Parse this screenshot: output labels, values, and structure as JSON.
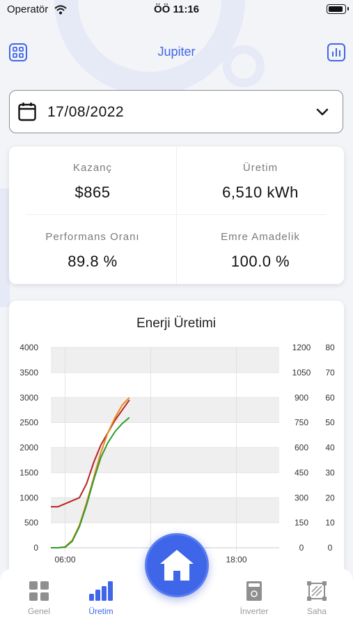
{
  "status_bar": {
    "carrier": "Operatör",
    "time": "ÖÖ 11:16"
  },
  "header": {
    "title": "Jupiter",
    "left_icon": "grid-icon",
    "right_icon": "bar-chart-icon"
  },
  "date_picker": {
    "value": "17/08/2022",
    "icon": "calendar-icon",
    "dropdown_icon": "chevron-down-icon"
  },
  "stats": {
    "earnings": {
      "label": "Kazanç",
      "value": "$865"
    },
    "production": {
      "label": "Üretim",
      "value": "6,510 kWh"
    },
    "performance": {
      "label": "Performans Oranı",
      "value": "89.8 %"
    },
    "availability": {
      "label": "Emre Amadelik",
      "value": "100.0 %"
    }
  },
  "chart_data": {
    "type": "line",
    "title": "Enerji Üretimi",
    "xlabel": "",
    "x_tick_labels": [
      "06:00",
      "18:00"
    ],
    "left_axis": {
      "ylim": [
        0,
        4000
      ],
      "ticks": [
        "0",
        "500",
        "1000",
        "1500",
        "2000",
        "2500",
        "3000",
        "3500",
        "4000"
      ]
    },
    "right_axis_1": {
      "ylim": [
        0,
        1200
      ],
      "ticks": [
        "0",
        "150",
        "300",
        "450",
        "600",
        "750",
        "900",
        "1050",
        "1200"
      ]
    },
    "right_axis_2": {
      "ylim": [
        0,
        80
      ],
      "ticks": [
        "0",
        "10",
        "20",
        "30",
        "40",
        "50",
        "60",
        "70",
        "80"
      ]
    },
    "x_range_hours": [
      5,
      21
    ],
    "series": [
      {
        "color": "#b52222",
        "x": [
          5,
          5.5,
          6,
          6.5,
          7,
          7.5,
          8,
          8.5,
          9,
          9.5,
          10,
          10.5
        ],
        "y": [
          820,
          820,
          880,
          940,
          1000,
          1280,
          1700,
          2050,
          2300,
          2550,
          2750,
          2950
        ]
      },
      {
        "color": "#e68a1a",
        "x": [
          5,
          5.5,
          6,
          6.5,
          7,
          7.5,
          8,
          8.5,
          9,
          9.5,
          10,
          10.5
        ],
        "y": [
          0,
          0,
          20,
          150,
          450,
          900,
          1400,
          1900,
          2300,
          2600,
          2850,
          3000
        ]
      },
      {
        "color": "#2e9a2e",
        "x": [
          5,
          5.5,
          6,
          6.5,
          7,
          7.5,
          8,
          8.5,
          9,
          9.5,
          10,
          10.5
        ],
        "y": [
          0,
          0,
          10,
          130,
          420,
          850,
          1350,
          1800,
          2100,
          2320,
          2480,
          2600
        ]
      }
    ],
    "colors": {
      "shaded_band": "#efefef",
      "grid": "#dddddd"
    }
  },
  "tab_bar": {
    "tabs": [
      {
        "label": "Genel",
        "icon": "dashboard-grid-icon",
        "active": false
      },
      {
        "label": "Üretim",
        "icon": "bar-chart-icon",
        "active": true
      },
      {
        "label": "İnverter",
        "icon": "inverter-icon",
        "active": false
      },
      {
        "label": "Saha",
        "icon": "site-area-icon",
        "active": false
      }
    ],
    "center_button_icon": "home-icon"
  },
  "theme": {
    "accent": "#3f66e8",
    "background": "#f3f4f8",
    "inactive": "#9a9a9a"
  }
}
